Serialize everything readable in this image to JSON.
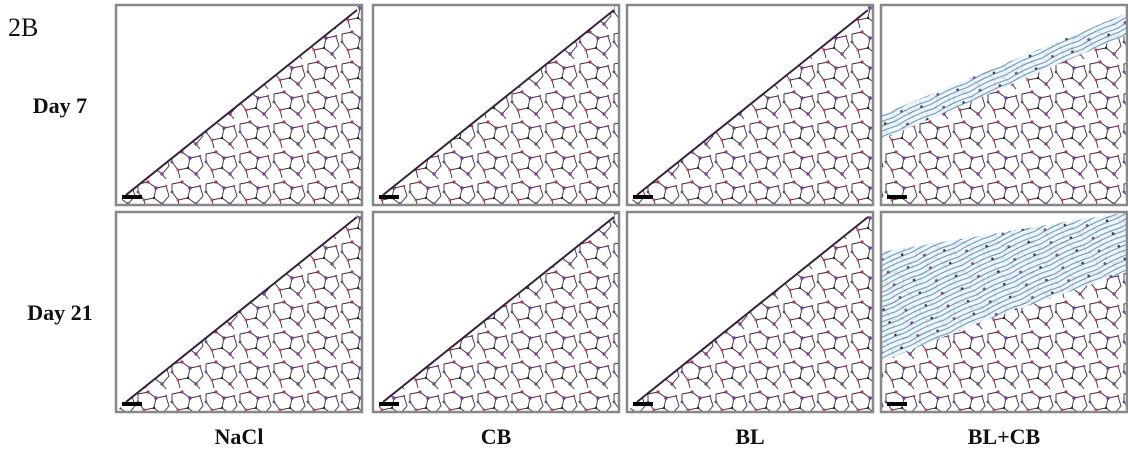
{
  "label": "2B",
  "rows": [
    "Day 7",
    "Day 21"
  ],
  "columns": [
    "NaCl",
    "CB",
    "BL",
    "BL+CB"
  ]
}
